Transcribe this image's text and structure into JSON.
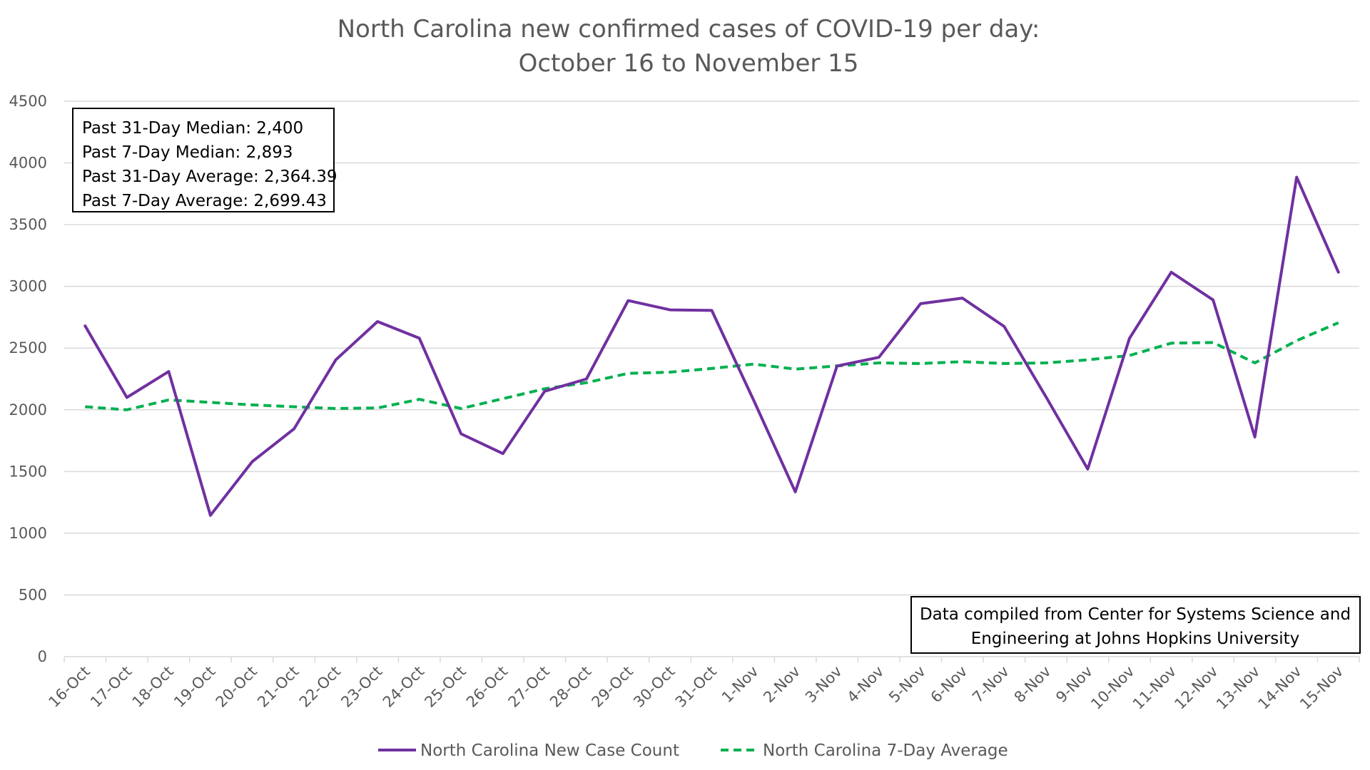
{
  "colors": {
    "case_line": "#7030a0",
    "avg_line": "#00b050",
    "grid": "#d9d9d9",
    "text": "#595959"
  },
  "chart_data": {
    "type": "line",
    "title": "North Carolina new confirmed cases of COVID-19 per day:",
    "subtitle": "October 16 to November 15",
    "xlabel": "",
    "ylabel": "",
    "ylim": [
      0,
      4500
    ],
    "yticks": [
      0,
      500,
      1000,
      1500,
      2000,
      2500,
      3000,
      3500,
      4000,
      4500
    ],
    "grid": true,
    "legend_position": "bottom",
    "categories": [
      "16-Oct",
      "17-Oct",
      "18-Oct",
      "19-Oct",
      "20-Oct",
      "21-Oct",
      "22-Oct",
      "23-Oct",
      "24-Oct",
      "25-Oct",
      "26-Oct",
      "27-Oct",
      "28-Oct",
      "29-Oct",
      "30-Oct",
      "31-Oct",
      "1-Nov",
      "2-Nov",
      "3-Nov",
      "4-Nov",
      "5-Nov",
      "6-Nov",
      "7-Nov",
      "8-Nov",
      "9-Nov",
      "10-Nov",
      "11-Nov",
      "12-Nov",
      "13-Nov",
      "14-Nov",
      "15-Nov"
    ],
    "series": [
      {
        "name": "North Carolina New Case Count",
        "style": "solid",
        "color": "#7030a0",
        "values": [
          2680,
          2100,
          2310,
          1145,
          1580,
          1845,
          2405,
          2715,
          2580,
          1805,
          1645,
          2150,
          2250,
          2885,
          2810,
          2805,
          2080,
          1335,
          2355,
          2425,
          2860,
          2905,
          2675,
          2105,
          1520,
          2580,
          3115,
          2890,
          1780,
          3885,
          3115
        ]
      },
      {
        "name": "North Carolina 7-Day Average",
        "style": "dashed",
        "color": "#00b050",
        "values": [
          2025,
          2000,
          2080,
          2060,
          2040,
          2025,
          2010,
          2015,
          2085,
          2010,
          2090,
          2170,
          2220,
          2295,
          2305,
          2335,
          2370,
          2330,
          2355,
          2380,
          2375,
          2390,
          2375,
          2380,
          2405,
          2440,
          2540,
          2545,
          2380,
          2560,
          2705
        ]
      }
    ],
    "stats_box": [
      "Past 31-Day Median: 2,400",
      "Past 7-Day Median: 2,893",
      "Past 31-Day Average: 2,364.39",
      "Past 7-Day Average: 2,699.43"
    ],
    "source_note": [
      "Data compiled from Center for Systems Science and",
      "Engineering at Johns Hopkins University"
    ]
  }
}
